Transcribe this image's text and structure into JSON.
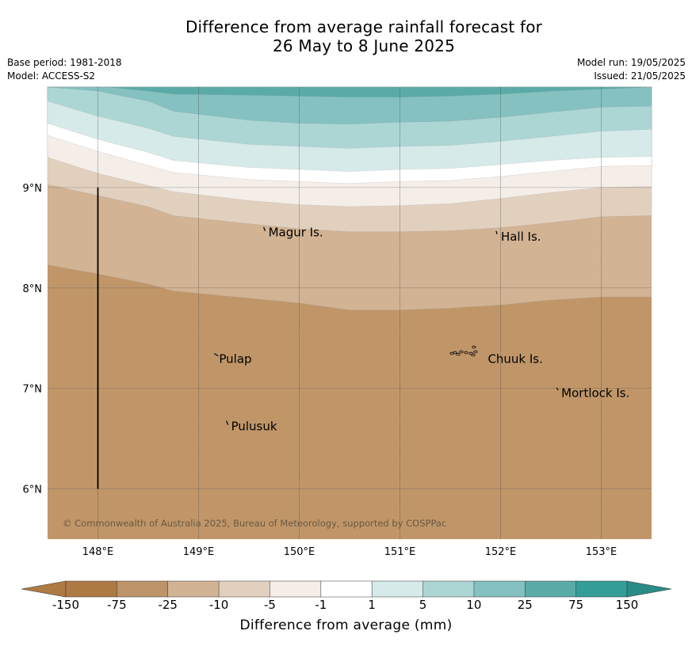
{
  "title": {
    "line1": "Difference from average rainfall forecast for",
    "line2": "26 May to 8 June 2025"
  },
  "meta": {
    "base_period": "Base period: 1981-2018",
    "model": "Model: ACCESS-S2",
    "model_run": "Model run: 19/05/2025",
    "issued": "Issued: 21/05/2025"
  },
  "map": {
    "lon_range": [
      147.5,
      153.5
    ],
    "lat_range": [
      5.5,
      10.0
    ],
    "lat_ticks": [
      {
        "value": 9,
        "label": "9°N"
      },
      {
        "value": 8,
        "label": "8°N"
      },
      {
        "value": 7,
        "label": "7°N"
      },
      {
        "value": 6,
        "label": "6°N"
      }
    ],
    "lon_ticks": [
      {
        "value": 148,
        "label": "148°E"
      },
      {
        "value": 149,
        "label": "149°E"
      },
      {
        "value": 150,
        "label": "150°E"
      },
      {
        "value": 151,
        "label": "151°E"
      },
      {
        "value": 152,
        "label": "152°E"
      },
      {
        "value": 153,
        "label": "153°E"
      }
    ],
    "places": [
      {
        "name": "Magur Is.",
        "lon": 149.67,
        "lat": 8.56
      },
      {
        "name": "Hall Is.",
        "lon": 151.98,
        "lat": 8.52
      },
      {
        "name": "Pulap",
        "lon": 149.18,
        "lat": 7.3
      },
      {
        "name": "Chuuk Is.",
        "lon": 151.85,
        "lat": 7.3
      },
      {
        "name": "Mortlock Is.",
        "lon": 152.58,
        "lat": 6.96
      },
      {
        "name": "Pulusuk",
        "lon": 149.3,
        "lat": 6.63
      }
    ],
    "copyright": "© Commonwealth of Australia 2025, Bureau of Meteorology, supported by COSPPac",
    "contour_colors": [
      "#c09669",
      "#d2b394",
      "#e2d0bf",
      "#f4ede8",
      "#ffffff",
      "#d6eae9",
      "#acd6d4",
      "#84c1c0",
      "#5aaba8"
    ],
    "contour_boundaries": [
      {
        "level": "-75/-25",
        "points": [
          [
            147.5,
            8.23
          ],
          [
            148.0,
            8.14
          ],
          [
            148.5,
            8.04
          ],
          [
            148.75,
            7.97
          ],
          [
            150.0,
            7.85
          ],
          [
            150.5,
            7.78
          ],
          [
            151.0,
            7.78
          ],
          [
            151.5,
            7.8
          ],
          [
            152.0,
            7.83
          ],
          [
            152.5,
            7.88
          ],
          [
            153.0,
            7.91
          ],
          [
            153.5,
            7.91
          ]
        ]
      },
      {
        "level": "-25/-10",
        "points": [
          [
            147.5,
            9.03
          ],
          [
            148.0,
            8.92
          ],
          [
            148.5,
            8.81
          ],
          [
            148.75,
            8.72
          ],
          [
            149.5,
            8.64
          ],
          [
            150.0,
            8.59
          ],
          [
            150.5,
            8.56
          ],
          [
            151.0,
            8.56
          ],
          [
            151.5,
            8.57
          ],
          [
            152.0,
            8.6
          ],
          [
            152.5,
            8.65
          ],
          [
            153.0,
            8.71
          ],
          [
            153.5,
            8.72
          ]
        ]
      },
      {
        "level": "-10/-5",
        "points": [
          [
            147.5,
            9.3
          ],
          [
            148.0,
            9.14
          ],
          [
            148.5,
            9.02
          ],
          [
            148.75,
            8.96
          ],
          [
            149.5,
            8.87
          ],
          [
            150.0,
            8.83
          ],
          [
            150.5,
            8.81
          ],
          [
            151.0,
            8.82
          ],
          [
            151.5,
            8.84
          ],
          [
            152.0,
            8.89
          ],
          [
            152.5,
            8.95
          ],
          [
            153.0,
            9.0
          ],
          [
            153.5,
            9.01
          ]
        ]
      },
      {
        "level": "-5/-1",
        "points": [
          [
            147.5,
            9.52
          ],
          [
            148.0,
            9.36
          ],
          [
            148.5,
            9.22
          ],
          [
            148.75,
            9.15
          ],
          [
            149.5,
            9.08
          ],
          [
            150.0,
            9.06
          ],
          [
            150.5,
            9.04
          ],
          [
            151.0,
            9.06
          ],
          [
            151.5,
            9.07
          ],
          [
            152.0,
            9.11
          ],
          [
            152.5,
            9.16
          ],
          [
            153.0,
            9.21
          ],
          [
            153.5,
            9.22
          ]
        ]
      },
      {
        "level": "-1/1",
        "points": [
          [
            147.5,
            9.64
          ],
          [
            148.0,
            9.48
          ],
          [
            148.5,
            9.35
          ],
          [
            148.75,
            9.27
          ],
          [
            149.5,
            9.2
          ],
          [
            150.0,
            9.18
          ],
          [
            150.5,
            9.16
          ],
          [
            151.0,
            9.18
          ],
          [
            151.5,
            9.19
          ],
          [
            152.0,
            9.23
          ],
          [
            152.5,
            9.27
          ],
          [
            153.0,
            9.3
          ],
          [
            153.5,
            9.31
          ]
        ]
      },
      {
        "level": "1/5",
        "points": [
          [
            147.5,
            9.86
          ],
          [
            148.0,
            9.71
          ],
          [
            148.5,
            9.59
          ],
          [
            148.75,
            9.51
          ],
          [
            149.5,
            9.43
          ],
          [
            150.0,
            9.41
          ],
          [
            150.5,
            9.39
          ],
          [
            151.0,
            9.41
          ],
          [
            151.5,
            9.42
          ],
          [
            152.0,
            9.46
          ],
          [
            152.5,
            9.51
          ],
          [
            153.0,
            9.56
          ],
          [
            153.5,
            9.58
          ]
        ]
      },
      {
        "level": "5/10",
        "points": [
          [
            147.5,
            10.0
          ],
          [
            148.0,
            9.96
          ],
          [
            148.5,
            9.86
          ],
          [
            148.75,
            9.76
          ],
          [
            149.5,
            9.67
          ],
          [
            150.0,
            9.64
          ],
          [
            150.5,
            9.63
          ],
          [
            151.0,
            9.65
          ],
          [
            151.5,
            9.66
          ],
          [
            152.0,
            9.7
          ],
          [
            152.5,
            9.75
          ],
          [
            153.0,
            9.8
          ],
          [
            153.5,
            9.81
          ]
        ]
      },
      {
        "level": "10/25",
        "points": [
          [
            148.1,
            10.0
          ],
          [
            148.5,
            9.96
          ],
          [
            148.75,
            9.93
          ],
          [
            149.5,
            9.92
          ],
          [
            150.0,
            9.91
          ],
          [
            150.5,
            9.9
          ],
          [
            151.0,
            9.9
          ],
          [
            151.5,
            9.91
          ],
          [
            152.0,
            9.93
          ],
          [
            152.5,
            9.96
          ],
          [
            153.0,
            9.98
          ],
          [
            153.5,
            10.0
          ]
        ]
      }
    ],
    "transect": {
      "lon": 148.0,
      "lat_from": 6.0,
      "lat_to": 9.0
    }
  },
  "colorbar": {
    "title": "Difference from average (mm)",
    "labels": [
      "-150",
      "-75",
      "-25",
      "-10",
      "-5",
      "-1",
      "1",
      "5",
      "10",
      "25",
      "75",
      "150"
    ],
    "colors": [
      "#ae7a44",
      "#bd9369",
      "#d2b394",
      "#e2d0bf",
      "#f4ede8",
      "#ffffff",
      "#d6eae9",
      "#acd6d4",
      "#84c1c0",
      "#5aaba8",
      "#359d98"
    ],
    "extend_low_color": "#ae7a44",
    "extend_high_color": "#2a8c86"
  }
}
